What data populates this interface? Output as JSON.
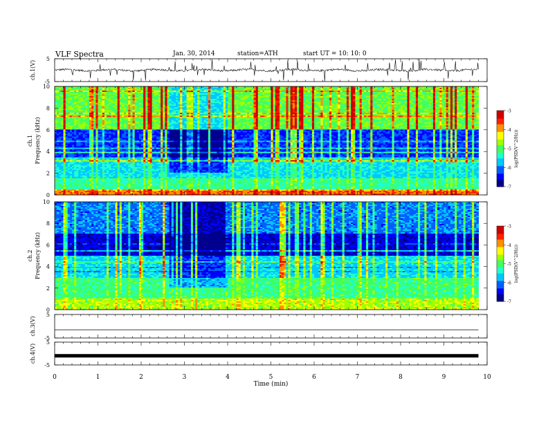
{
  "header": {
    "title": "VLF  Spectra",
    "date": "Jan. 30, 2014",
    "station": "station=ATH",
    "start": "start  UT  =    10: 10: 0"
  },
  "colors": {
    "trace": "#000000",
    "axis": "#000000",
    "colormap": [
      "#00008f",
      "#0000ff",
      "#0060ff",
      "#00c8ff",
      "#20ffd0",
      "#40ff60",
      "#a0ff00",
      "#ffff00",
      "#ff9000",
      "#ff2000",
      "#d00000",
      "#ffffff"
    ]
  },
  "chart_data": [
    {
      "type": "line",
      "name": "ch1-waveform",
      "ylabel": "ch.1(V)",
      "ylim": [
        -5,
        5
      ],
      "yticks": [
        5,
        -5
      ],
      "x_range_min": [
        0,
        9.8
      ],
      "baseline_v": 0,
      "description_of_signal": "noisy waveform with frequent spikes",
      "notes": ""
    },
    {
      "type": "heatmap",
      "name": "ch1-spectrogram",
      "ylabel": "ch.1\nFrequency (kHz)",
      "ylim_khz": [
        0,
        10
      ],
      "yticks": [
        0,
        2,
        4,
        6,
        8,
        10
      ],
      "xlim_min": [
        0,
        9.8
      ],
      "colorbar_label": "log(PSD(V^2/Hz))",
      "colorbar_range": [
        -7,
        -3
      ],
      "colorbar_ticks": [
        -3,
        -4,
        -5,
        -6,
        -7
      ],
      "quiet_interval_min": [
        2.65,
        4.0
      ],
      "typical_logpsd_by_band": [
        {
          "khz": [
            0,
            0.5
          ],
          "value": -3.8
        },
        {
          "khz": [
            0.5,
            1.5
          ],
          "value": -5.2
        },
        {
          "khz": [
            1.5,
            3.5
          ],
          "value": -5.6
        },
        {
          "khz": [
            3.5,
            6.0
          ],
          "value": -6.3
        },
        {
          "khz": [
            6.0,
            10.0
          ],
          "value": -4.9
        }
      ]
    },
    {
      "type": "heatmap",
      "name": "ch2-spectrogram",
      "ylabel": "ch.2\nFrequency (kHz)",
      "ylim_khz": [
        0,
        10
      ],
      "yticks": [
        0,
        2,
        4,
        6,
        8,
        10
      ],
      "xlim_min": [
        0,
        9.8
      ],
      "colorbar_label": "log(PSD(V^2/Hz))",
      "colorbar_range": [
        -7,
        -3
      ],
      "colorbar_ticks": [
        -3,
        -4,
        -5,
        -6,
        -7
      ],
      "quiet_interval_min": [
        2.65,
        4.0
      ],
      "typical_logpsd_by_band": [
        {
          "khz": [
            0,
            1.0
          ],
          "value": -4.6
        },
        {
          "khz": [
            1.0,
            3.0
          ],
          "value": -5.1
        },
        {
          "khz": [
            3.0,
            5.0
          ],
          "value": -5.6
        },
        {
          "khz": [
            5.0,
            7.0
          ],
          "value": -6.6
        },
        {
          "khz": [
            7.0,
            10.0
          ],
          "value": -6.0
        }
      ]
    },
    {
      "type": "line",
      "name": "ch3-waveform",
      "ylabel": "ch.3(V)",
      "ylim": [
        -5,
        5
      ],
      "yticks": [
        5,
        -5
      ],
      "level_v": -1.5
    },
    {
      "type": "line",
      "name": "ch4-waveform",
      "ylabel": "ch.4(V)",
      "ylim": [
        -5,
        5
      ],
      "yticks": [
        5,
        -5
      ],
      "level_v": -1.0
    },
    {
      "type": "axis",
      "name": "time-axis",
      "xlabel": "Time  (min)",
      "xlim": [
        0,
        10
      ],
      "xticks": [
        0,
        1,
        2,
        3,
        4,
        5,
        6,
        7,
        8,
        9,
        10
      ]
    }
  ]
}
